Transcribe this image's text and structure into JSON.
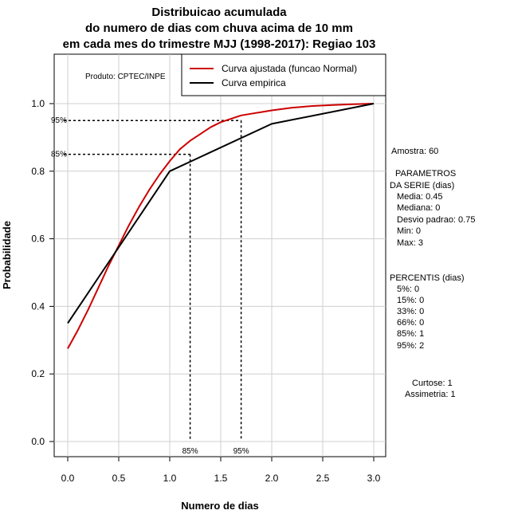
{
  "chart_data": {
    "type": "line",
    "title_lines": [
      "Distribuicao acumulada",
      "do numero de dias com chuva acima de 10 mm",
      "em cada mes do trimestre MJJ (1998-2017): Regiao 103"
    ],
    "xlabel": "Numero de dias",
    "ylabel": "Probabilidade",
    "xlim": [
      0,
      3
    ],
    "ylim": [
      0,
      1.1
    ],
    "x_ticks": [
      "0.0",
      "0.5",
      "1.0",
      "1.5",
      "2.0",
      "2.5",
      "3.0"
    ],
    "y_ticks": [
      "0.0",
      "0.2",
      "0.4",
      "0.6",
      "0.8",
      "1.0"
    ],
    "grid": true,
    "legend_position": "top-right",
    "product_note": "Produto: CPTEC/INPE",
    "series": [
      {
        "name": "Curva ajustada (funcao Normal)",
        "color": "#cc0000",
        "x": [
          0,
          0.1,
          0.2,
          0.3,
          0.4,
          0.5,
          0.6,
          0.7,
          0.8,
          0.9,
          1.0,
          1.1,
          1.2,
          1.3,
          1.4,
          1.5,
          1.6,
          1.7,
          1.8,
          1.9,
          2.0,
          2.2,
          2.4,
          2.6,
          2.8,
          3.0
        ],
        "y": [
          0.275,
          0.33,
          0.39,
          0.455,
          0.52,
          0.58,
          0.64,
          0.695,
          0.745,
          0.79,
          0.83,
          0.865,
          0.89,
          0.91,
          0.93,
          0.945,
          0.955,
          0.965,
          0.97,
          0.975,
          0.98,
          0.988,
          0.993,
          0.996,
          0.998,
          1.0
        ]
      },
      {
        "name": "Curva empirica",
        "color": "#000000",
        "x": [
          0,
          1,
          2,
          3
        ],
        "y": [
          0.35,
          0.8,
          0.94,
          1.0
        ]
      }
    ],
    "percentile_markers": [
      {
        "label": "85%",
        "x": 1.2,
        "y": 0.85
      },
      {
        "label": "95%",
        "x": 1.7,
        "y": 0.95
      }
    ]
  },
  "side_panel": {
    "amostra": "Amostra: 60",
    "param_title_1": "PARAMETROS",
    "param_title_2": "DA SERIE (dias)",
    "media": "Media: 0.45",
    "mediana": "Mediana: 0",
    "desvio": "Desvio padrao: 0.75",
    "min": "Min: 0",
    "max": "Max: 3",
    "percentis_title": "PERCENTIS (dias)",
    "p5": "5%: 0",
    "p15": "15%: 0",
    "p33": "33%: 0",
    "p66": "66%: 0",
    "p85": "85%: 1",
    "p95": "95%: 2",
    "curtose": "Curtose: 1",
    "assimetria": "Assimetria: 1"
  }
}
